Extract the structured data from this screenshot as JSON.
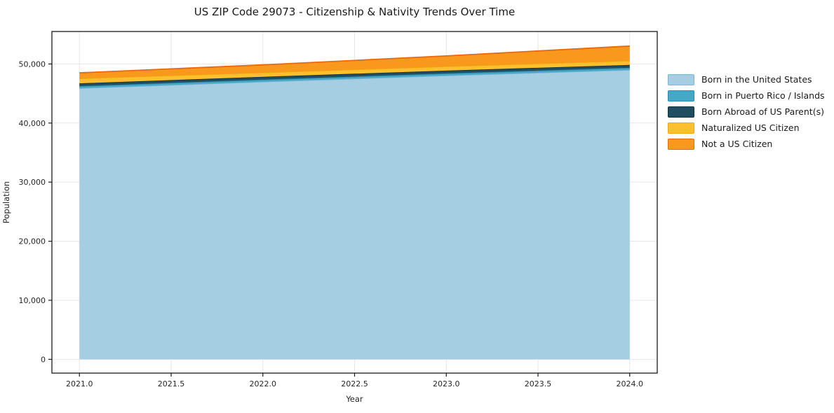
{
  "chart_data": {
    "type": "area",
    "stacked": true,
    "title": "US ZIP Code 29073 - Citizenship & Nativity Trends Over Time",
    "xlabel": "Year",
    "ylabel": "Population",
    "x": [
      2021,
      2022,
      2023,
      2024
    ],
    "series": [
      {
        "name": "Born in the United States",
        "color": "#A6CEE3",
        "edge_color": "#7AB5D3",
        "values": [
          45900,
          47000,
          48050,
          49000
        ]
      },
      {
        "name": "Born in Puerto Rico / Islands",
        "color": "#45A8C6",
        "edge_color": "#2C8EAD",
        "values": [
          350,
          350,
          350,
          360
        ]
      },
      {
        "name": "Born Abroad of US Parent(s)",
        "color": "#204D5F",
        "edge_color": "#13323F",
        "values": [
          470,
          480,
          480,
          480
        ]
      },
      {
        "name": "Naturalized US Citizen",
        "color": "#FCC02E",
        "edge_color": "#F0A70C",
        "values": [
          830,
          720,
          710,
          710
        ]
      },
      {
        "name": "Not a US Citizen",
        "color": "#F8981D",
        "edge_color": "#E8680F",
        "values": [
          950,
          1300,
          1780,
          2490
        ]
      }
    ],
    "x_ticks": {
      "values": [
        2021.0,
        2021.5,
        2022.0,
        2022.5,
        2023.0,
        2023.5,
        2024.0
      ],
      "labels": [
        "2021.0",
        "2021.5",
        "2022.0",
        "2022.5",
        "2023.0",
        "2023.5",
        "2024.0"
      ]
    },
    "y_ticks": {
      "values": [
        0,
        10000,
        20000,
        30000,
        40000,
        50000
      ],
      "labels": [
        "0",
        "10,000",
        "20,000",
        "30,000",
        "40,000",
        "50,000"
      ]
    },
    "xlim": [
      2020.85,
      2024.15
    ],
    "ylim": [
      -2330,
      55500
    ],
    "grid": true,
    "legend_position": "right-outside",
    "colors": {
      "grid": "#E6E6E6",
      "spine": "#1A1A1A",
      "tick_text": "#262626",
      "background": "#FFFFFF"
    }
  }
}
